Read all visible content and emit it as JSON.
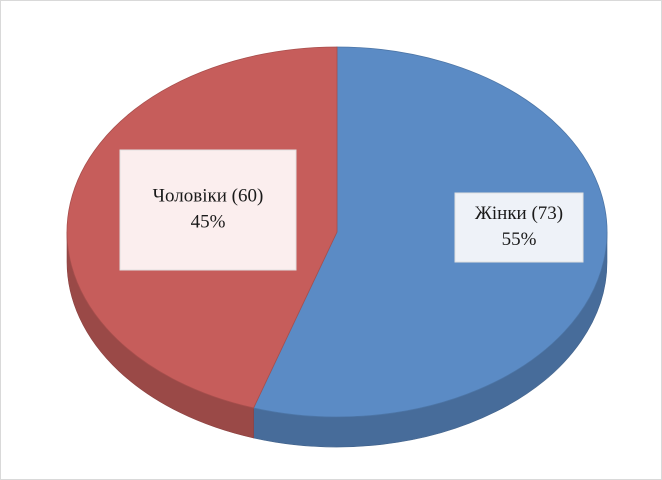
{
  "chart_data": {
    "type": "pie",
    "categories": [
      "Жінки (73)",
      "Чоловіки (60)"
    ],
    "values": [
      55,
      45
    ],
    "value_labels": [
      "55%",
      "45%"
    ],
    "colors": [
      "#5b8bc5",
      "#c65d5b"
    ]
  }
}
